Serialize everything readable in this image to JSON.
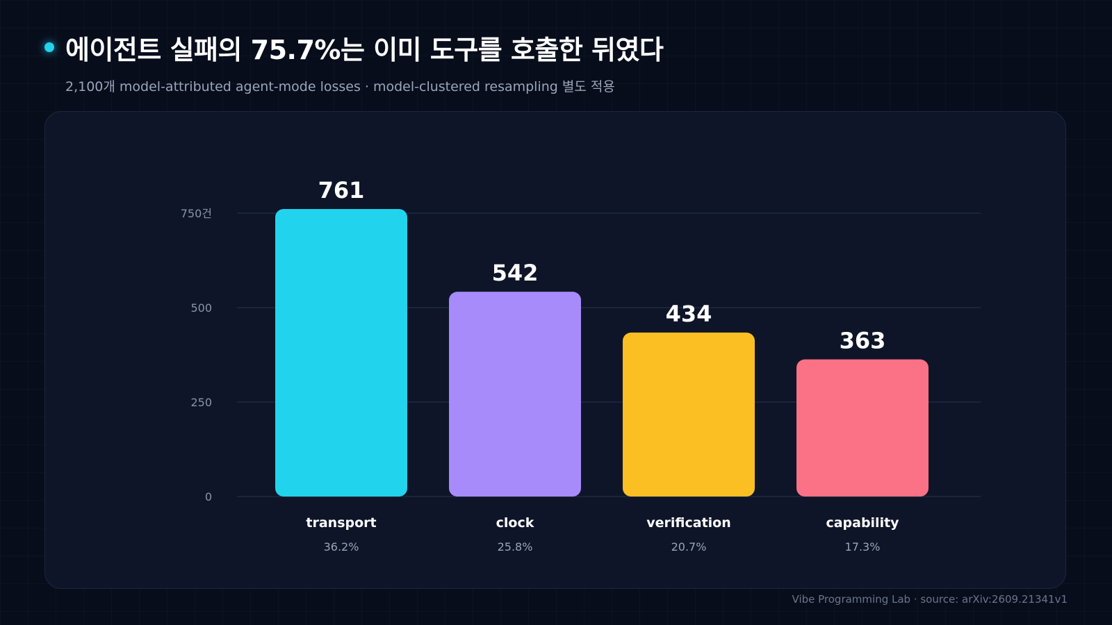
{
  "header": {
    "title": "에이전트 실패의 75.7%는 이미 도구를 호출한 뒤였다",
    "subtitle": "2,100개 model-attributed agent-mode losses · model-clustered resampling 별도 적용"
  },
  "footer": {
    "credit": "Vibe Programming Lab · source: arXiv:2609.21341v1"
  },
  "chart_data": {
    "type": "bar",
    "categories": [
      "transport",
      "clock",
      "verification",
      "capability"
    ],
    "values": [
      761,
      542,
      434,
      363
    ],
    "value_labels": [
      "761",
      "542",
      "434",
      "363"
    ],
    "percent_labels": [
      "36.2%",
      "25.8%",
      "20.7%",
      "17.3%"
    ],
    "colors": [
      "#22d3ee",
      "#a78bfa",
      "#fbbf24",
      "#fb7185"
    ],
    "ylim": [
      0,
      750
    ],
    "yticks": [
      0,
      250,
      500,
      750
    ],
    "ytick_labels": [
      "0",
      "250",
      "500",
      "750건"
    ],
    "grid": true
  }
}
